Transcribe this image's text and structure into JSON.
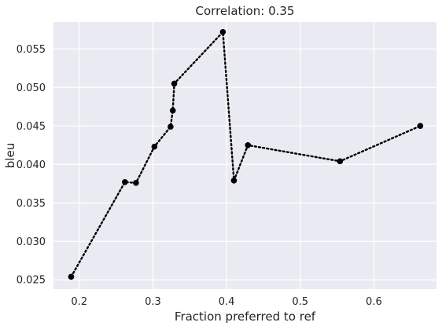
{
  "chart_data": {
    "type": "line",
    "title": "Correlation: 0.35",
    "xlabel": "Fraction preferred to ref",
    "ylabel": "bleu",
    "xlim": [
      0.165,
      0.685
    ],
    "ylim": [
      0.0238,
      0.0585
    ],
    "xticks": [
      0.2,
      0.3,
      0.4,
      0.5,
      0.6
    ],
    "xtick_labels": [
      "0.2",
      "0.3",
      "0.4",
      "0.5",
      "0.6"
    ],
    "yticks": [
      0.025,
      0.03,
      0.035,
      0.04,
      0.045,
      0.05,
      0.055
    ],
    "ytick_labels": [
      "0.025",
      "0.030",
      "0.035",
      "0.040",
      "0.045",
      "0.050",
      "0.055"
    ],
    "grid": true,
    "line_style": "dotted",
    "colors": {
      "plot_background": "#eaeaf2",
      "grid": "#ffffff",
      "series": "#000000"
    },
    "series": [
      {
        "x": [
          0.189,
          0.262,
          0.277,
          0.302,
          0.324,
          0.327,
          0.329,
          0.395,
          0.41,
          0.429,
          0.554,
          0.663
        ],
        "values": [
          0.0254,
          0.0377,
          0.0376,
          0.0423,
          0.0449,
          0.047,
          0.0505,
          0.0572,
          0.0379,
          0.0425,
          0.0404,
          0.045
        ]
      }
    ]
  }
}
